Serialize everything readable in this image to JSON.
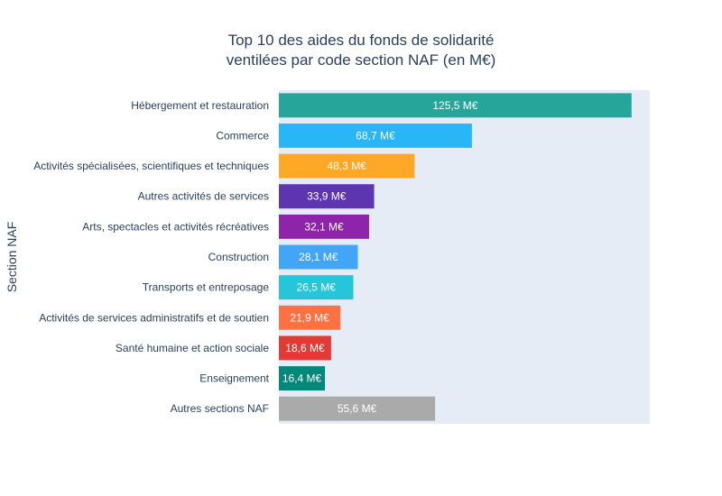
{
  "chart_data": {
    "type": "bar",
    "orientation": "horizontal",
    "title_lines": [
      "Top 10 des aides du fonds de solidarité",
      "ventilées par code section NAF (en M€)"
    ],
    "xlabel": "",
    "ylabel": "Section NAF",
    "categories": [
      "Hébergement et restauration",
      "Commerce",
      "Activités spécialisées, scientifiques et techniques",
      "Autres activités de services",
      "Arts, spectacles et activités récréatives",
      "Construction",
      "Transports et entreposage",
      "Activités de services administratifs et de soutien",
      "Santé humaine et action sociale",
      "Enseignement",
      "Autres sections NAF"
    ],
    "values": [
      125.5,
      68.7,
      48.3,
      33.9,
      32.1,
      28.1,
      26.5,
      21.9,
      18.6,
      16.4,
      55.6
    ],
    "value_labels": [
      "125,5 M€",
      "68,7 M€",
      "48,3 M€",
      "33,9 M€",
      "32,1 M€",
      "28,1 M€",
      "26,5 M€",
      "21,9 M€",
      "18,6 M€",
      "16,4 M€",
      "55,6 M€"
    ],
    "colors": [
      "#26a69a",
      "#29b6f6",
      "#ffa726",
      "#5e35b1",
      "#8e24aa",
      "#42a5f5",
      "#26c6da",
      "#ff7043",
      "#e53935",
      "#00897b",
      "#aaaaaa"
    ],
    "xlim": [
      0,
      132
    ],
    "grid": false,
    "legend": false,
    "plot_background": "#e5ecf6"
  }
}
